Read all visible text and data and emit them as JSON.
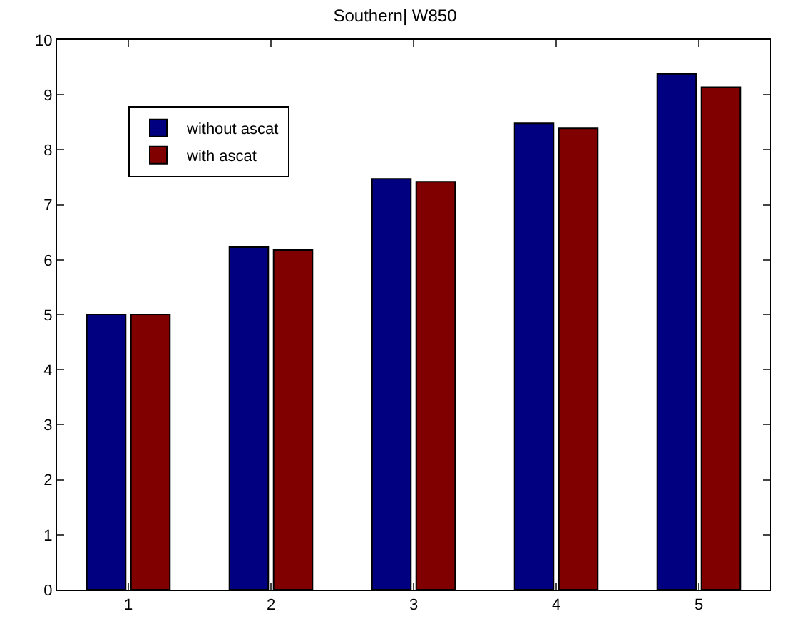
{
  "chart_data": {
    "type": "bar",
    "title": "Southern| W850",
    "categories": [
      "1",
      "2",
      "3",
      "4",
      "5"
    ],
    "series": [
      {
        "name": "without ascat",
        "color": "#000080",
        "values": [
          5.0,
          6.23,
          7.47,
          8.48,
          9.38
        ]
      },
      {
        "name": "with ascat",
        "color": "#800000",
        "values": [
          5.0,
          6.18,
          7.42,
          8.39,
          9.14
        ]
      }
    ],
    "ylim": [
      0,
      10
    ],
    "yticks": [
      0,
      1,
      2,
      3,
      4,
      5,
      6,
      7,
      8,
      9,
      10
    ],
    "legend": "top left"
  }
}
